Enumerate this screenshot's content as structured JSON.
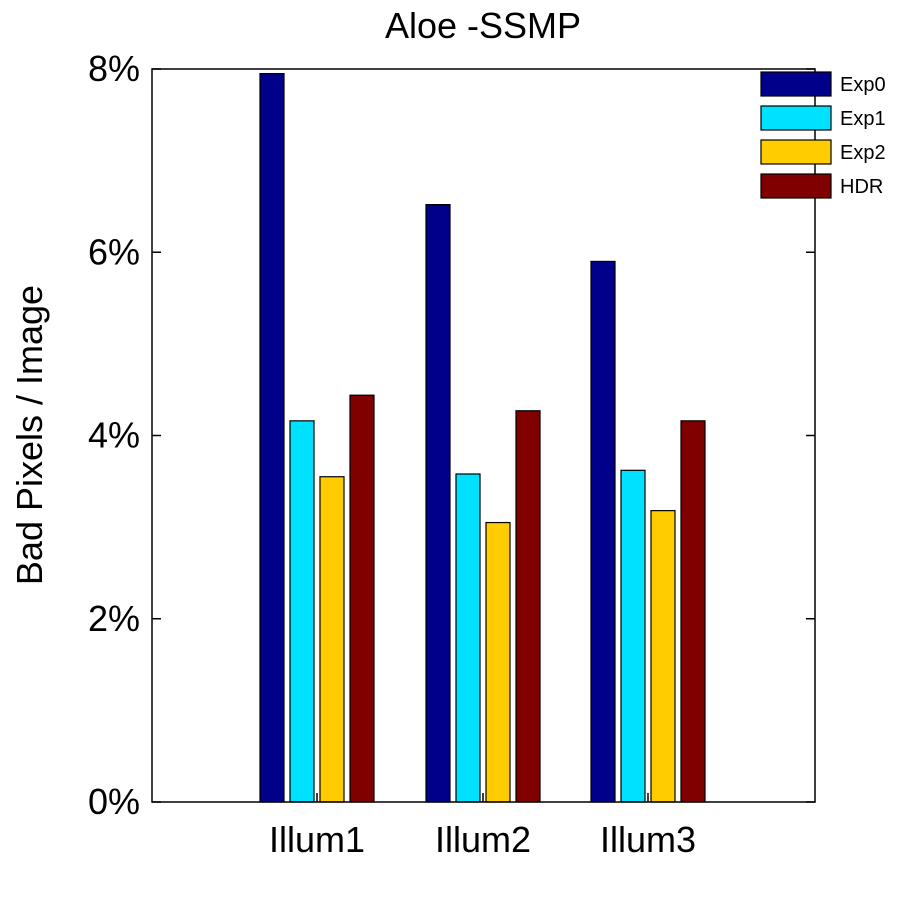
{
  "chart_data": {
    "type": "bar",
    "title": "Aloe -SSMP",
    "xlabel": "",
    "ylabel": "Bad Pixels / Image",
    "categories": [
      "Illum1",
      "Illum2",
      "Illum3"
    ],
    "ylim": [
      0,
      8
    ],
    "yticks": [
      0,
      2,
      4,
      6,
      8
    ],
    "ytick_labels": [
      "0%",
      "2%",
      "4%",
      "6%",
      "8%"
    ],
    "grid": false,
    "legend_position": "top-right",
    "series": [
      {
        "name": "Exp0",
        "color": "#00008b",
        "values": [
          7.95,
          6.52,
          5.9
        ]
      },
      {
        "name": "Exp1",
        "color": "#00e0ff",
        "values": [
          4.16,
          3.58,
          3.62
        ]
      },
      {
        "name": "Exp2",
        "color": "#ffcc00",
        "values": [
          3.55,
          3.05,
          3.18
        ]
      },
      {
        "name": "HDR",
        "color": "#800000",
        "values": [
          4.44,
          4.27,
          4.16
        ]
      }
    ]
  }
}
